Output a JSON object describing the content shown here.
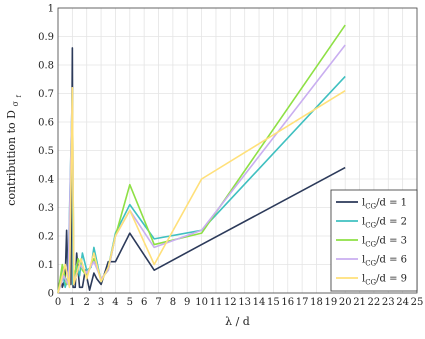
{
  "chart_data": {
    "type": "line",
    "xlabel": "λ / d",
    "ylabel_main": "contribution to D",
    "ylabel_sub": "σ",
    "ylabel_subsub": "f",
    "xlim": [
      0,
      25
    ],
    "ylim": [
      0,
      1
    ],
    "xticks": [
      "0",
      "1",
      "2",
      "3",
      "4",
      "5",
      "6",
      "7",
      "8",
      "9",
      "10",
      "11",
      "12",
      "13",
      "14",
      "15",
      "16",
      "17",
      "18",
      "19",
      "20",
      "21",
      "22",
      "23",
      "24",
      "25"
    ],
    "yticks": [
      "0",
      "0.1",
      "0.2",
      "0.3",
      "0.4",
      "0.5",
      "0.6",
      "0.7",
      "0.8",
      "0.9",
      "1"
    ],
    "grid": true,
    "legend_position": "lower-right",
    "series": [
      {
        "name": "l",
        "sub": "CG",
        "suffix": "/d = 1",
        "color": "#2c3a5a",
        "points": [
          [
            0,
            0
          ],
          [
            0.2,
            0.06
          ],
          [
            0.3,
            0.02
          ],
          [
            0.5,
            0.05
          ],
          [
            0.6,
            0.22
          ],
          [
            0.7,
            0.05
          ],
          [
            0.8,
            0.22
          ],
          [
            0.9,
            0.03
          ],
          [
            1.0,
            0.86
          ],
          [
            1.05,
            0.02
          ],
          [
            1.2,
            0.02
          ],
          [
            1.3,
            0.14
          ],
          [
            1.5,
            0.02
          ],
          [
            1.7,
            0.02
          ],
          [
            1.9,
            0.08
          ],
          [
            2.2,
            0.01
          ],
          [
            2.5,
            0.07
          ],
          [
            2.7,
            0.05
          ],
          [
            3.0,
            0.03
          ],
          [
            3.5,
            0.11
          ],
          [
            4.0,
            0.11
          ],
          [
            5.0,
            0.21
          ],
          [
            6.7,
            0.08
          ],
          [
            10.0,
            0.17
          ],
          [
            20.0,
            0.44
          ]
        ]
      },
      {
        "name": "l",
        "sub": "CG",
        "suffix": "/d = 2",
        "color": "#3fc0c0",
        "points": [
          [
            0,
            0
          ],
          [
            0.3,
            0.08
          ],
          [
            0.5,
            0.02
          ],
          [
            0.7,
            0.06
          ],
          [
            1.0,
            0.72
          ],
          [
            1.05,
            0.03
          ],
          [
            1.3,
            0.1
          ],
          [
            1.5,
            0.06
          ],
          [
            1.7,
            0.14
          ],
          [
            2.0,
            0.08
          ],
          [
            2.3,
            0.09
          ],
          [
            2.5,
            0.16
          ],
          [
            3.0,
            0.04
          ],
          [
            3.5,
            0.09
          ],
          [
            4.0,
            0.21
          ],
          [
            5.0,
            0.31
          ],
          [
            6.7,
            0.19
          ],
          [
            10.0,
            0.22
          ],
          [
            20.0,
            0.76
          ]
        ]
      },
      {
        "name": "l",
        "sub": "CG",
        "suffix": "/d = 3",
        "color": "#8ee045",
        "points": [
          [
            0,
            0
          ],
          [
            0.3,
            0.1
          ],
          [
            0.6,
            0.03
          ],
          [
            0.8,
            0.08
          ],
          [
            1.0,
            0.72
          ],
          [
            1.1,
            0.05
          ],
          [
            1.4,
            0.12
          ],
          [
            1.7,
            0.08
          ],
          [
            2.0,
            0.06
          ],
          [
            2.5,
            0.12
          ],
          [
            3.0,
            0.05
          ],
          [
            3.5,
            0.08
          ],
          [
            4.0,
            0.2
          ],
          [
            5.0,
            0.38
          ],
          [
            6.7,
            0.17
          ],
          [
            10.0,
            0.21
          ],
          [
            20.0,
            0.94
          ]
        ]
      },
      {
        "name": "l",
        "sub": "CG",
        "suffix": "/d = 6",
        "color": "#c9aef0",
        "points": [
          [
            0,
            0
          ],
          [
            0.4,
            0.06
          ],
          [
            0.7,
            0.03
          ],
          [
            1.0,
            0.72
          ],
          [
            1.1,
            0.04
          ],
          [
            1.5,
            0.1
          ],
          [
            2.0,
            0.07
          ],
          [
            2.5,
            0.11
          ],
          [
            3.0,
            0.05
          ],
          [
            3.5,
            0.08
          ],
          [
            4.0,
            0.2
          ],
          [
            5.0,
            0.29
          ],
          [
            6.7,
            0.16
          ],
          [
            10.0,
            0.22
          ],
          [
            20.0,
            0.87
          ]
        ]
      },
      {
        "name": "l",
        "sub": "CG",
        "suffix": "/d = 9",
        "color": "#ffe07a",
        "points": [
          [
            0,
            0
          ],
          [
            0.2,
            0.04
          ],
          [
            0.5,
            0.1
          ],
          [
            0.8,
            0.02
          ],
          [
            1.0,
            0.72
          ],
          [
            1.1,
            0.03
          ],
          [
            1.6,
            0.12
          ],
          [
            2.0,
            0.05
          ],
          [
            2.5,
            0.14
          ],
          [
            3.0,
            0.04
          ],
          [
            3.5,
            0.09
          ],
          [
            4.0,
            0.2
          ],
          [
            5.0,
            0.29
          ],
          [
            6.7,
            0.1
          ],
          [
            10.0,
            0.4
          ],
          [
            20.0,
            0.71
          ]
        ]
      }
    ]
  }
}
